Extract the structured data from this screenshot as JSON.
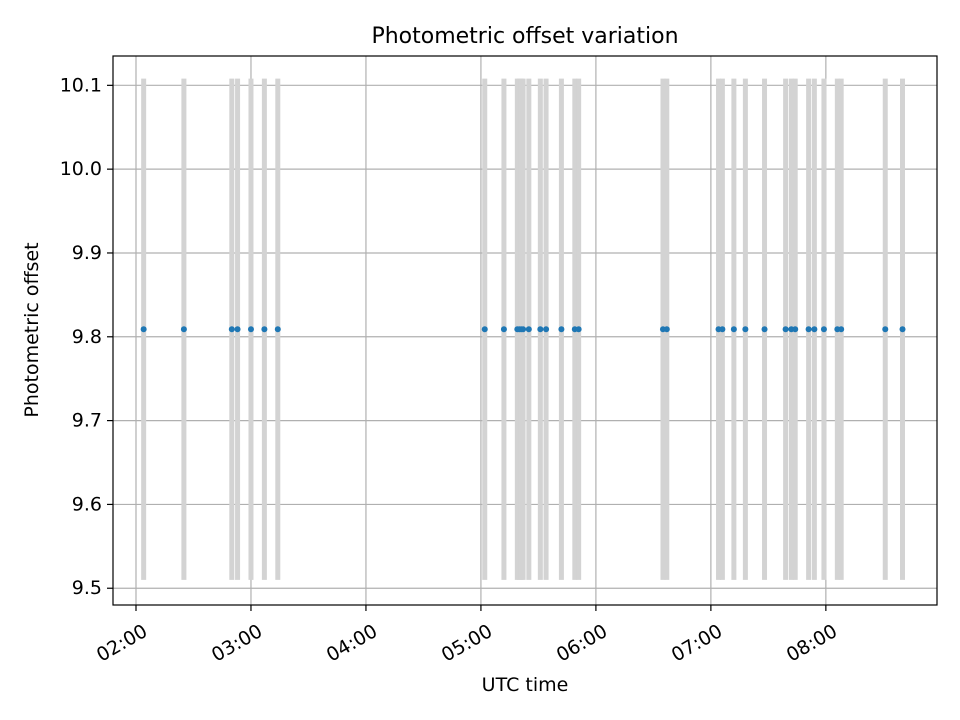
{
  "chart_data": {
    "type": "scatter",
    "title": "Photometric offset variation",
    "xlabel": "UTC time",
    "ylabel": "Photometric offset",
    "x_axis_kind": "time",
    "xlim": [
      "01:48",
      "08:58"
    ],
    "ylim": [
      9.48,
      10.135
    ],
    "x_ticks": [
      "02:00",
      "03:00",
      "04:00",
      "05:00",
      "06:00",
      "07:00",
      "08:00"
    ],
    "y_ticks": [
      "9.5",
      "9.6",
      "9.7",
      "9.8",
      "9.9",
      "10.0",
      "10.1"
    ],
    "grid": true,
    "error_bar_range": [
      9.51,
      10.108
    ],
    "series": [
      {
        "marker_color": "#1f77b4",
        "error_bar_color": "#d3d3d3",
        "points": [
          {
            "x": "02:04",
            "y": 9.809
          },
          {
            "x": "02:25",
            "y": 9.809
          },
          {
            "x": "02:50",
            "y": 9.809
          },
          {
            "x": "02:53",
            "y": 9.809
          },
          {
            "x": "03:00",
            "y": 9.809
          },
          {
            "x": "03:07",
            "y": 9.809
          },
          {
            "x": "03:14",
            "y": 9.809
          },
          {
            "x": "05:02",
            "y": 9.809
          },
          {
            "x": "05:12",
            "y": 9.809
          },
          {
            "x": "05:19",
            "y": 9.809
          },
          {
            "x": "05:20",
            "y": 9.809
          },
          {
            "x": "05:21",
            "y": 9.809
          },
          {
            "x": "05:22",
            "y": 9.809
          },
          {
            "x": "05:25",
            "y": 9.809
          },
          {
            "x": "05:31",
            "y": 9.809
          },
          {
            "x": "05:34",
            "y": 9.809
          },
          {
            "x": "05:42",
            "y": 9.809
          },
          {
            "x": "05:49",
            "y": 9.809
          },
          {
            "x": "05:51",
            "y": 9.809
          },
          {
            "x": "06:35",
            "y": 9.809
          },
          {
            "x": "06:37",
            "y": 9.809
          },
          {
            "x": "07:04",
            "y": 9.809
          },
          {
            "x": "07:06",
            "y": 9.809
          },
          {
            "x": "07:12",
            "y": 9.809
          },
          {
            "x": "07:18",
            "y": 9.809
          },
          {
            "x": "07:28",
            "y": 9.809
          },
          {
            "x": "07:39",
            "y": 9.809
          },
          {
            "x": "07:42",
            "y": 9.809
          },
          {
            "x": "07:44",
            "y": 9.809
          },
          {
            "x": "07:51",
            "y": 9.809
          },
          {
            "x": "07:54",
            "y": 9.809
          },
          {
            "x": "07:59",
            "y": 9.809
          },
          {
            "x": "08:06",
            "y": 9.809
          },
          {
            "x": "08:08",
            "y": 9.809
          },
          {
            "x": "08:31",
            "y": 9.809
          },
          {
            "x": "08:40",
            "y": 9.809
          }
        ]
      }
    ]
  }
}
